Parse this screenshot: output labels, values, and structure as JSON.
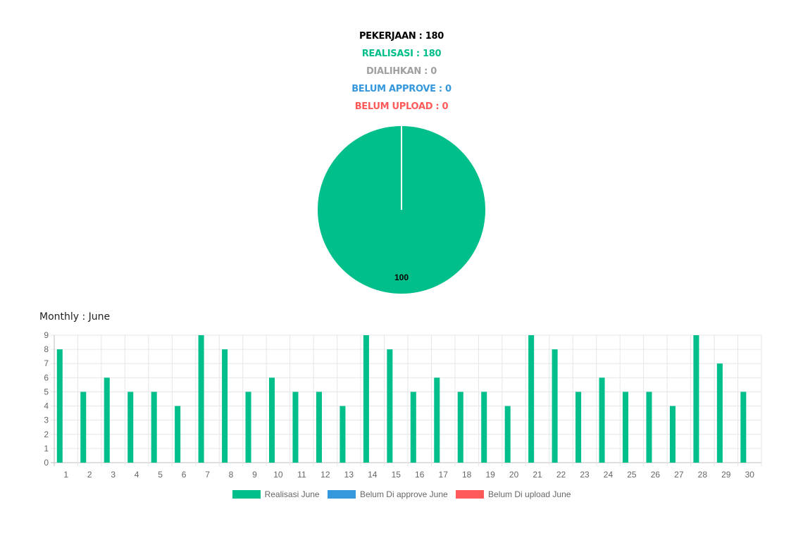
{
  "summary": {
    "pekerjaan": "PEKERJAAN : 180",
    "realisasi": "REALISASI : 180",
    "dialihkan": "DIALIHKAN : 0",
    "belum_approve": "BELUM APPROVE : 0",
    "belum_upload": "BELUM UPLOAD : 0"
  },
  "colors": {
    "pekerjaan": "#000000",
    "realisasi": "#00BF8A",
    "dialihkan": "#A0A0A0",
    "belum_approve": "#3598DC",
    "belum_upload": "#FF5A5A"
  },
  "monthly_title": "Monthly : June",
  "chart_data": [
    {
      "type": "pie",
      "slices": [
        {
          "name": "Realisasi",
          "value": 180,
          "color": "#00BF8A"
        },
        {
          "name": "Dialihkan",
          "value": 0,
          "color": "#A0A0A0"
        },
        {
          "name": "Belum Approve",
          "value": 0,
          "color": "#3598DC"
        },
        {
          "name": "Belum Upload",
          "value": 0,
          "color": "#FF5A5A"
        }
      ],
      "data_label": "100"
    },
    {
      "type": "bar",
      "categories": [
        "1",
        "2",
        "3",
        "4",
        "5",
        "6",
        "7",
        "8",
        "9",
        "10",
        "11",
        "12",
        "13",
        "14",
        "15",
        "16",
        "17",
        "18",
        "19",
        "20",
        "21",
        "22",
        "23",
        "24",
        "25",
        "26",
        "27",
        "28",
        "29",
        "30"
      ],
      "series": [
        {
          "name": "Realisasi June",
          "color": "#00BF8A",
          "values": [
            8,
            5,
            6,
            5,
            5,
            4,
            9,
            8,
            5,
            6,
            5,
            5,
            4,
            9,
            8,
            5,
            6,
            5,
            5,
            4,
            9,
            8,
            5,
            6,
            5,
            5,
            4,
            9,
            7,
            5
          ]
        },
        {
          "name": "Belum Di approve June",
          "color": "#3598DC",
          "values": [
            0,
            0,
            0,
            0,
            0,
            0,
            0,
            0,
            0,
            0,
            0,
            0,
            0,
            0,
            0,
            0,
            0,
            0,
            0,
            0,
            0,
            0,
            0,
            0,
            0,
            0,
            0,
            0,
            0,
            0
          ]
        },
        {
          "name": "Belum Di upload June",
          "color": "#FF5A5A",
          "values": [
            0,
            0,
            0,
            0,
            0,
            0,
            0,
            0,
            0,
            0,
            0,
            0,
            0,
            0,
            0,
            0,
            0,
            0,
            0,
            0,
            0,
            0,
            0,
            0,
            0,
            0,
            0,
            0,
            0,
            0
          ]
        }
      ],
      "ylim": [
        0,
        9
      ],
      "yticks": [
        "0",
        "1",
        "2",
        "3",
        "4",
        "5",
        "6",
        "7",
        "8",
        "9"
      ],
      "grid": true,
      "legend_position": "bottom"
    }
  ]
}
